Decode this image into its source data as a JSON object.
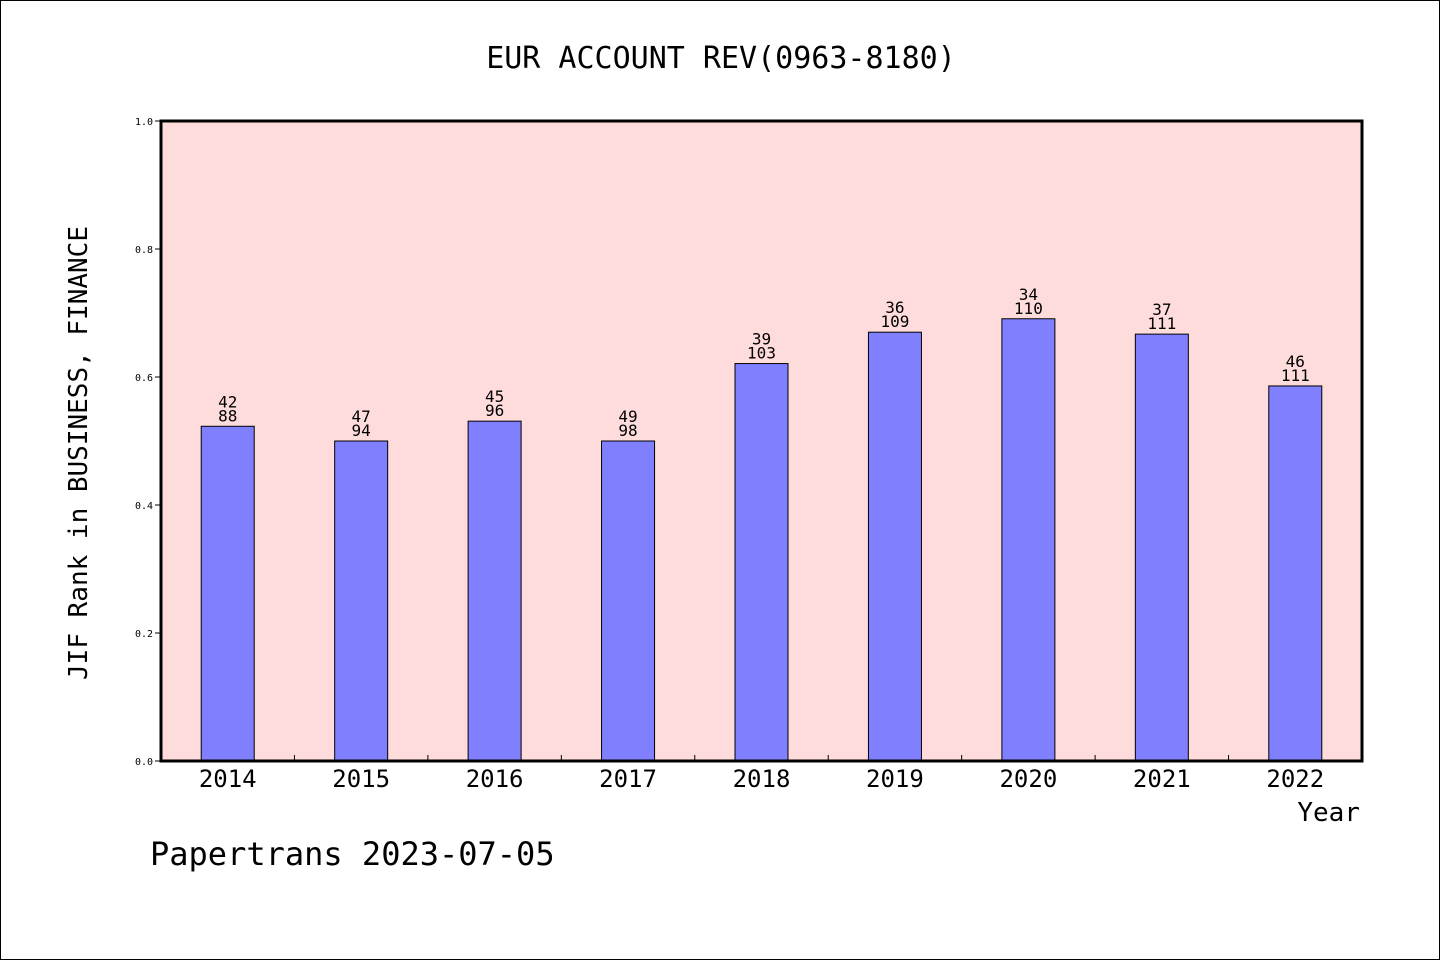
{
  "chart_data": {
    "type": "bar",
    "title": "EUR ACCOUNT REV(0963-8180)",
    "xlabel": "Year",
    "ylabel": "JIF Rank in BUSINESS, FINANCE",
    "ylim": [
      0.0,
      1.0
    ],
    "yticks": [
      "0.0",
      "0.2",
      "0.4",
      "0.6",
      "0.8",
      "1.0"
    ],
    "categories": [
      "2014",
      "2015",
      "2016",
      "2017",
      "2018",
      "2019",
      "2020",
      "2021",
      "2022"
    ],
    "values": [
      0.523,
      0.5,
      0.531,
      0.5,
      0.621,
      0.67,
      0.691,
      0.667,
      0.586
    ],
    "rank": [
      "42",
      "47",
      "45",
      "49",
      "39",
      "36",
      "34",
      "37",
      "46"
    ],
    "total": [
      "88",
      "94",
      "96",
      "98",
      "103",
      "109",
      "110",
      "111",
      "111"
    ],
    "grid": false,
    "colors": {
      "plot_bg": "#ffdcdc",
      "bar": "#8080ff",
      "bar_edge": "#000000"
    }
  },
  "footer": {
    "text": "Papertrans 2023-07-05"
  }
}
